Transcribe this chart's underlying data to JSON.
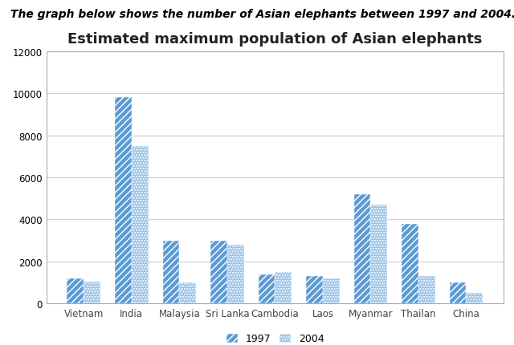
{
  "title": "Estimated maximum population of Asian elephants",
  "subtitle": "The graph below shows the number of Asian elephants between 1997 and 2004.",
  "categories": [
    "Vietnam",
    "India",
    "Malaysia",
    "Sri Lanka",
    "Cambodia",
    "Laos",
    "Myanmar",
    "Thailan",
    "China"
  ],
  "values_1997": [
    1200,
    9800,
    3000,
    3000,
    1400,
    1300,
    5200,
    3800,
    1000
  ],
  "values_2004": [
    1050,
    7500,
    1000,
    2800,
    1500,
    1200,
    4700,
    1300,
    500
  ],
  "ylim": [
    0,
    12000
  ],
  "yticks": [
    0,
    2000,
    4000,
    6000,
    8000,
    10000,
    12000
  ],
  "color_1997": "#5B9BD5",
  "color_2004": "#9DC3E6",
  "hatch_1997": "////",
  "hatch_2004": ".....",
  "legend_labels": [
    "1997",
    "2004"
  ],
  "bar_width": 0.35,
  "background_color": "#FFFFFF",
  "chart_bg_color": "#F2F2F2",
  "grid_color": "#CCCCCC",
  "border_color": "#AAAAAA",
  "title_fontsize": 13,
  "subtitle_fontsize": 10,
  "tick_fontsize": 8.5
}
